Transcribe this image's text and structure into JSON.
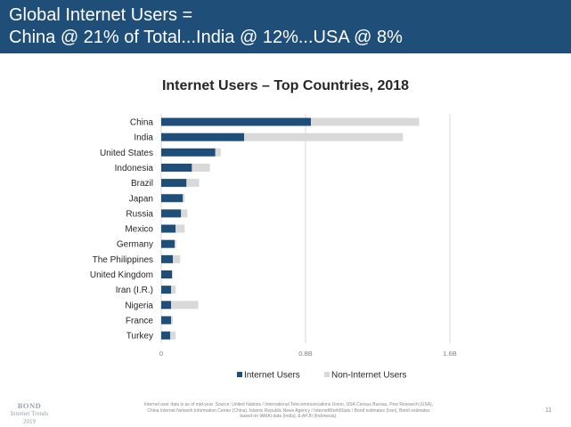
{
  "header": {
    "line1": "Global Internet Users =",
    "line2": "China @ 21% of Total...India @ 12%...USA @ 8%"
  },
  "colors": {
    "header_bg": "#1f4e79",
    "internet_users": "#1f4e79",
    "non_internet_users": "#d9d9d9"
  },
  "chart_data": {
    "type": "bar",
    "orientation": "horizontal",
    "stacked": true,
    "title": "Internet Users – Top Countries, 2018",
    "xlabel": "",
    "ylabel": "",
    "categories": [
      "China",
      "India",
      "United States",
      "Indonesia",
      "Brazil",
      "Japan",
      "Russia",
      "Mexico",
      "Germany",
      "The Philippines",
      "United Kingdom",
      "Iran (I.R.)",
      "Nigeria",
      "France",
      "Turkey"
    ],
    "series": [
      {
        "name": "Internet Users",
        "values": [
          0.83,
          0.46,
          0.3,
          0.17,
          0.14,
          0.12,
          0.11,
          0.08,
          0.075,
          0.065,
          0.06,
          0.055,
          0.055,
          0.055,
          0.05
        ]
      },
      {
        "name": "Non-Internet Users",
        "values": [
          0.6,
          0.88,
          0.03,
          0.1,
          0.07,
          0.01,
          0.035,
          0.05,
          0.008,
          0.04,
          0.005,
          0.025,
          0.15,
          0.01,
          0.03
        ]
      }
    ],
    "xlim": [
      0,
      1.6
    ],
    "xticks": [
      0,
      0.8,
      1.6
    ],
    "xtick_labels": [
      "0",
      "0.8B",
      "1.6B"
    ],
    "grid": true,
    "legend_position": "bottom"
  },
  "footer": {
    "logo_line1": "BOND",
    "logo_line2": "Internet Trends",
    "logo_line3": "2019",
    "footnote": "Internet user data is as of mid-year. Source: United Nations / International Telecommunications Union, USA Census Bureau, Pew Research (USA), China Internet Network Information Center (China), Islamic Republic News Agency / InternetWorldStats / Bond estimates (Iran), Bond estimates based on IAMAI data (India), & APJII (Indonesia).",
    "page_number": "11"
  }
}
